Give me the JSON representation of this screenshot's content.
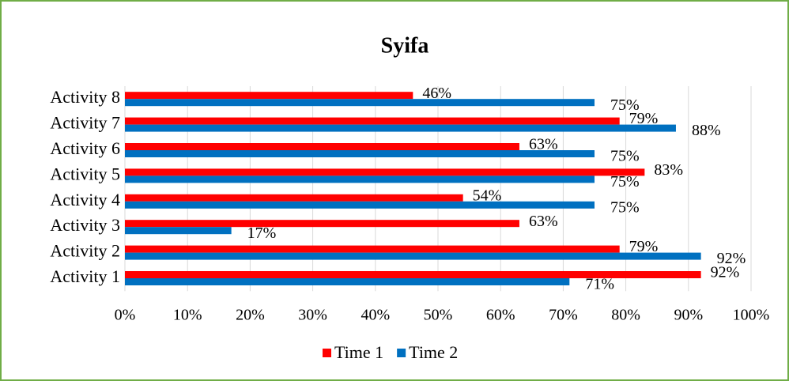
{
  "chart_data": {
    "type": "hbar",
    "title": "Syifa",
    "categories": [
      "Activity 1",
      "Activity 2",
      "Activity 3",
      "Activity 4",
      "Activity 5",
      "Activity 6",
      "Activity 7",
      "Activity 8"
    ],
    "series": [
      {
        "name": "Time 1",
        "color": "#ff0000",
        "values": [
          92,
          79,
          63,
          54,
          83,
          63,
          79,
          46
        ],
        "value_labels": [
          "92%",
          "79%",
          "63%",
          "54%",
          "83%",
          "63%",
          "79%",
          "46%"
        ]
      },
      {
        "name": "Time 2",
        "color": "#0070c0",
        "values": [
          71,
          92,
          17,
          75,
          75,
          75,
          88,
          75
        ],
        "value_labels": [
          "71%",
          "92%",
          "17%",
          "75%",
          "75%",
          "75%",
          "88%",
          "75%"
        ]
      }
    ],
    "xlim": [
      0,
      100
    ],
    "xticks": [
      {
        "value": 0,
        "label": "0%"
      },
      {
        "value": 10,
        "label": "10%"
      },
      {
        "value": 20,
        "label": "20%"
      },
      {
        "value": 30,
        "label": "30%"
      },
      {
        "value": 40,
        "label": "40%"
      },
      {
        "value": 50,
        "label": "50%"
      },
      {
        "value": 60,
        "label": "60%"
      },
      {
        "value": 70,
        "label": "70%"
      },
      {
        "value": 80,
        "label": "80%"
      },
      {
        "value": 90,
        "label": "90%"
      },
      {
        "value": 100,
        "label": "100%"
      }
    ],
    "grid": true,
    "legend": "bottom"
  }
}
